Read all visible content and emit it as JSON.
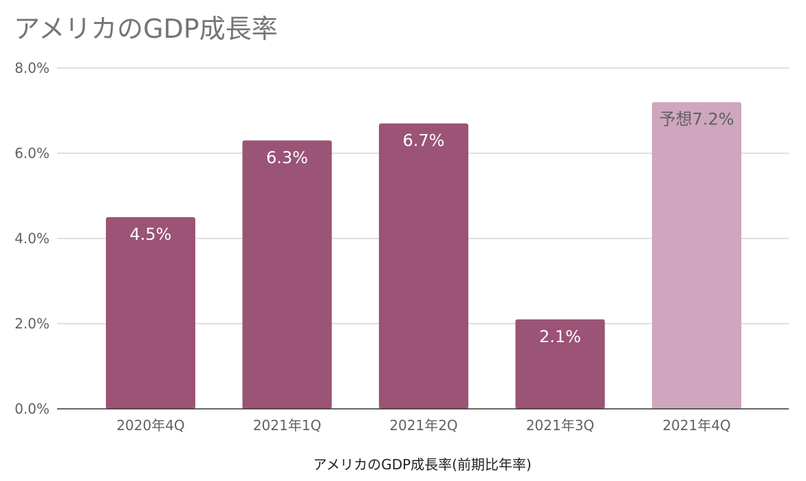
{
  "chart_data": {
    "type": "bar",
    "title": "アメリカのGDP成長率",
    "xlabel": "アメリカのGDP成長率(前期比年率)",
    "ylabel": "",
    "categories": [
      "2020年4Q",
      "2021年1Q",
      "2021年2Q",
      "2021年3Q",
      "2021年4Q"
    ],
    "values": [
      4.5,
      6.3,
      6.7,
      2.1,
      7.2
    ],
    "data_labels": [
      "4.5%",
      "6.3%",
      "6.7%",
      "2.1%",
      "予想7.2%"
    ],
    "forecast": [
      false,
      false,
      false,
      false,
      true
    ],
    "yticks": [
      "0.0%",
      "2.0%",
      "4.0%",
      "6.0%",
      "8.0%"
    ],
    "ytick_values": [
      0,
      2,
      4,
      6,
      8
    ],
    "ylim": [
      0,
      8
    ],
    "grid": true,
    "legend": "none"
  },
  "colors": {
    "bar": "#9b5376",
    "bar_forecast": "#cea7be",
    "grid": "#cccccc",
    "baseline": "#333333",
    "label_on_bar": "#ffffff",
    "label_forecast": "#616161"
  }
}
